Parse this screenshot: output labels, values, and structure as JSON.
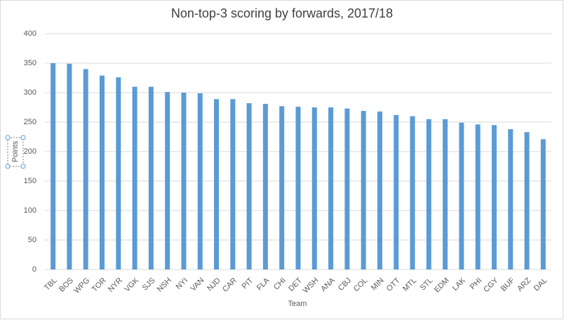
{
  "chart_data": {
    "type": "bar",
    "title": "Non-top-3 scoring by forwards, 2017/18",
    "x_label": "Team",
    "y_label": "Points",
    "categories": [
      "TBL",
      "BOS",
      "WPG",
      "TOR",
      "NYR",
      "VGK",
      "SJS",
      "NSH",
      "NYI",
      "VAN",
      "NJD",
      "CAR",
      "PIT",
      "FLA",
      "CHI",
      "DET",
      "WSH",
      "ANA",
      "CBJ",
      "COL",
      "MIN",
      "OTT",
      "MTL",
      "STL",
      "EDM",
      "LAK",
      "PHI",
      "CGY",
      "BUF",
      "ARZ",
      "DAL"
    ],
    "values": [
      350,
      349,
      340,
      329,
      326,
      310,
      310,
      301,
      300,
      299,
      289,
      289,
      282,
      281,
      277,
      276,
      275,
      275,
      273,
      269,
      268,
      262,
      260,
      255,
      255,
      249,
      246,
      245,
      238,
      233,
      221
    ],
    "color": "#5b9bd5",
    "ylim": [
      0,
      400
    ],
    "yticks": [
      0,
      50,
      100,
      150,
      200,
      250,
      300,
      350,
      400
    ],
    "grid": true
  }
}
